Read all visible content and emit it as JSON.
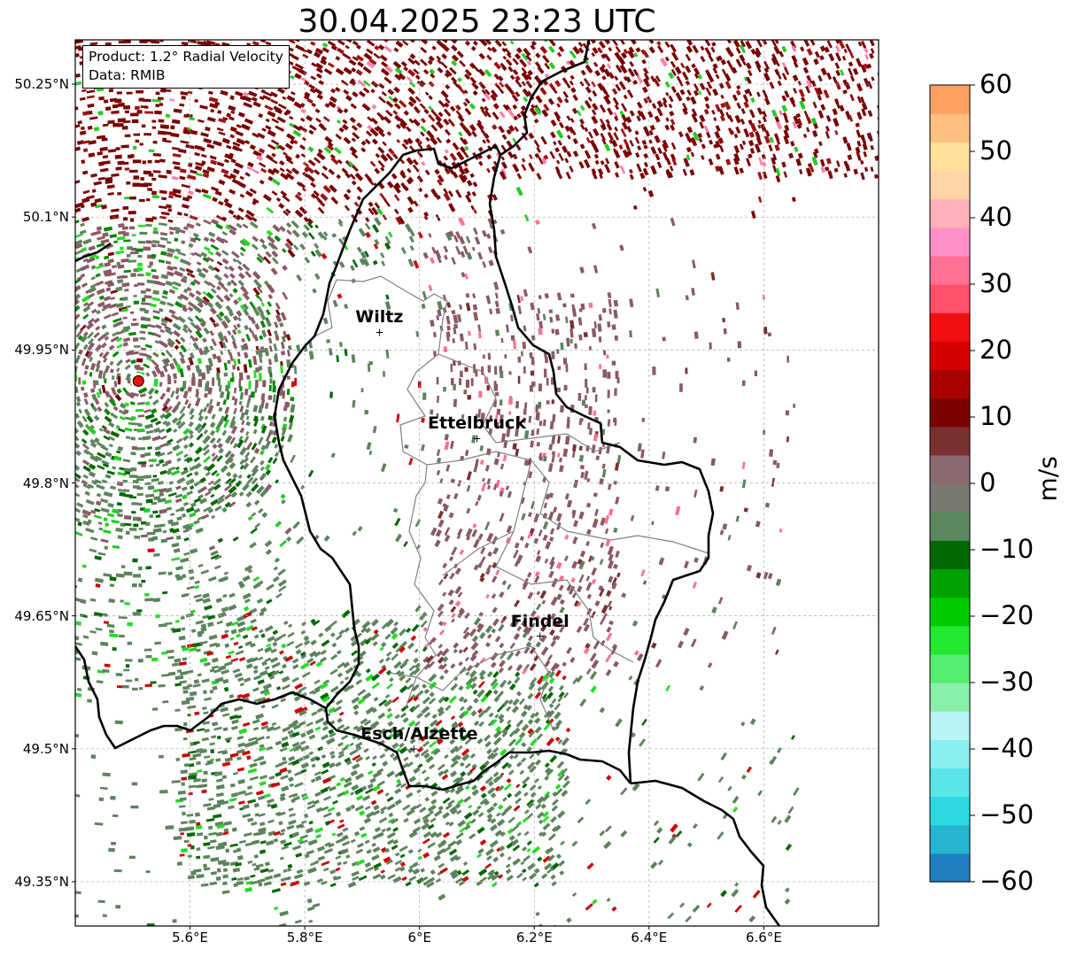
{
  "title": "30.04.2025 23:23 UTC",
  "info": {
    "product_line": "Product: 1.2° Radial Velocity",
    "data_line": "Data: RMIB"
  },
  "axes": {
    "lon_ticks": [
      {
        "value": 5.6,
        "label": "5.6°E"
      },
      {
        "value": 5.8,
        "label": "5.8°E"
      },
      {
        "value": 6.0,
        "label": "6°E"
      },
      {
        "value": 6.2,
        "label": "6.2°E"
      },
      {
        "value": 6.4,
        "label": "6.4°E"
      },
      {
        "value": 6.6,
        "label": "6.6°E"
      }
    ],
    "lat_ticks": [
      {
        "value": 50.25,
        "label": "50.25°N"
      },
      {
        "value": 50.1,
        "label": "50.1°N"
      },
      {
        "value": 49.95,
        "label": "49.95°N"
      },
      {
        "value": 49.8,
        "label": "49.8°N"
      },
      {
        "value": 49.65,
        "label": "49.65°N"
      },
      {
        "value": 49.5,
        "label": "49.5°N"
      },
      {
        "value": 49.35,
        "label": "49.35°N"
      }
    ],
    "lon_range": [
      5.4,
      6.8
    ],
    "lat_range": [
      49.3,
      50.3
    ],
    "grid": true
  },
  "cities": [
    {
      "name": "Wiltz",
      "lon": 5.93,
      "lat": 49.97
    },
    {
      "name": "Ettelbruck",
      "lon": 6.1,
      "lat": 49.85
    },
    {
      "name": "Findel",
      "lon": 6.21,
      "lat": 49.627
    },
    {
      "name": "Esch/Alzette",
      "lon": 5.99,
      "lat": 49.5
    }
  ],
  "radar_site": {
    "lon": 5.51,
    "lat": 49.915,
    "color": "#ee1111"
  },
  "colorbar": {
    "unit": "m/s",
    "min": -60,
    "max": 60,
    "ticks": [
      {
        "value": 60,
        "label": "60"
      },
      {
        "value": 50,
        "label": "50"
      },
      {
        "value": 40,
        "label": "40"
      },
      {
        "value": 30,
        "label": "30"
      },
      {
        "value": 20,
        "label": "20"
      },
      {
        "value": 10,
        "label": "10"
      },
      {
        "value": 0,
        "label": "0"
      },
      {
        "value": -10,
        "label": "−10"
      },
      {
        "value": -20,
        "label": "−20"
      },
      {
        "value": -30,
        "label": "−30"
      },
      {
        "value": -40,
        "label": "−40"
      },
      {
        "value": -50,
        "label": "−50"
      },
      {
        "value": -60,
        "label": "−60"
      }
    ],
    "colors": [
      "#2080c0",
      "#25b5d0",
      "#2ad8e0",
      "#5ae6e8",
      "#8aeef0",
      "#b8f4f4",
      "#88f0a8",
      "#55ec70",
      "#22e830",
      "#00cc00",
      "#00a000",
      "#006800",
      "#5a8860",
      "#7a7a72",
      "#8a6a70",
      "#7a3030",
      "#7a0000",
      "#a80000",
      "#d40000",
      "#f01010",
      "#ff5068",
      "#ff7095",
      "#ff90c8",
      "#ffb0b8",
      "#ffd4a8",
      "#ffe09a",
      "#ffc080",
      "#ffa060"
    ]
  },
  "colors": {
    "approaching": "#5c845c",
    "receding_slow": "#8a5a64",
    "receding": "#7a0000",
    "border": "#000000",
    "district": "#808080"
  }
}
